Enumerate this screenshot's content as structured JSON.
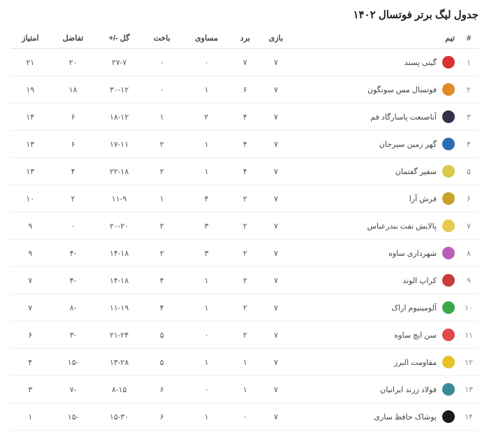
{
  "title": "جدول لیگ برتر فوتسال ۱۴۰۲",
  "columns": {
    "rank": "#",
    "team": "تیم",
    "played": "بازی",
    "won": "برد",
    "draw": "مساوی",
    "lost": "باخت",
    "goals": "گل -/+",
    "diff": "تفاضل",
    "points": "امتیاز"
  },
  "rows": [
    {
      "rank": "۱",
      "team": "گیتی پسند",
      "logo_color": "#d93232",
      "played": "۷",
      "won": "۷",
      "draw": "۰",
      "lost": "۰",
      "goals": "۲۷-۷",
      "diff": "۲۰",
      "points": "۲۱"
    },
    {
      "rank": "۲",
      "team": "فوتسال مس سونگون",
      "logo_color": "#e08a2a",
      "played": "۷",
      "won": "۶",
      "draw": "۱",
      "lost": "۰",
      "goals": "۳۰-۱۲",
      "diff": "۱۸",
      "points": "۱۹"
    },
    {
      "rank": "۳",
      "team": "آناصنعت پاسارگاد قم",
      "logo_color": "#3a2f4a",
      "played": "۷",
      "won": "۴",
      "draw": "۲",
      "lost": "۱",
      "goals": "۱۸-۱۲",
      "diff": "۶",
      "points": "۱۴"
    },
    {
      "rank": "۴",
      "team": "گهر زمین سیرجان",
      "logo_color": "#2a6fb5",
      "played": "۷",
      "won": "۴",
      "draw": "۱",
      "lost": "۲",
      "goals": "۱۷-۱۱",
      "diff": "۶",
      "points": "۱۳"
    },
    {
      "rank": "۵",
      "team": "سفیر گفتمان",
      "logo_color": "#d9c84a",
      "played": "۷",
      "won": "۴",
      "draw": "۱",
      "lost": "۲",
      "goals": "۲۲-۱۸",
      "diff": "۴",
      "points": "۱۳"
    },
    {
      "rank": "۶",
      "team": "فرش آرا",
      "logo_color": "#c9a227",
      "played": "۷",
      "won": "۲",
      "draw": "۴",
      "lost": "۱",
      "goals": "۱۱-۹",
      "diff": "۲",
      "points": "۱۰"
    },
    {
      "rank": "۷",
      "team": "پالایش نفت بندرعباس",
      "logo_color": "#e6c94f",
      "played": "۷",
      "won": "۲",
      "draw": "۳",
      "lost": "۲",
      "goals": "۲۰-۲۰",
      "diff": "۰",
      "points": "۹"
    },
    {
      "rank": "۸",
      "team": "شهرداری ساوه",
      "logo_color": "#b85fb8",
      "played": "۷",
      "won": "۲",
      "draw": "۳",
      "lost": "۲",
      "goals": "۱۴-۱۸",
      "diff": "-۴",
      "points": "۹"
    },
    {
      "rank": "۹",
      "team": "کراپ الوند",
      "logo_color": "#c93a3a",
      "played": "۷",
      "won": "۲",
      "draw": "۱",
      "lost": "۴",
      "goals": "۱۴-۱۸",
      "diff": "-۴",
      "points": "۷"
    },
    {
      "rank": "۱۰",
      "team": "آلومینیوم اراک",
      "logo_color": "#3aa84a",
      "played": "۷",
      "won": "۲",
      "draw": "۱",
      "lost": "۴",
      "goals": "۱۱-۱۹",
      "diff": "-۸",
      "points": "۷"
    },
    {
      "rank": "۱۱",
      "team": "سن ایچ ساوه",
      "logo_color": "#e04a4a",
      "played": "۷",
      "won": "۲",
      "draw": "۰",
      "lost": "۵",
      "goals": "۲۱-۲۴",
      "diff": "-۳",
      "points": "۶"
    },
    {
      "rank": "۱۲",
      "team": "مقاومت البرز",
      "logo_color": "#e6c22a",
      "played": "۷",
      "won": "۱",
      "draw": "۱",
      "lost": "۵",
      "goals": "۱۳-۲۸",
      "diff": "-۱۵",
      "points": "۴"
    },
    {
      "rank": "۱۳",
      "team": "فولاد زرند ایرانیان",
      "logo_color": "#3a8a9a",
      "played": "۷",
      "won": "۱",
      "draw": "۰",
      "lost": "۶",
      "goals": "۸-۱۵",
      "diff": "-۷",
      "points": "۳"
    },
    {
      "rank": "۱۴",
      "team": "پوشاک حافظ ساری",
      "logo_color": "#1a1a1a",
      "played": "۷",
      "won": "۰",
      "draw": "۱",
      "lost": "۶",
      "goals": "۱۵-۳۰",
      "diff": "-۱۵",
      "points": "۱"
    }
  ]
}
